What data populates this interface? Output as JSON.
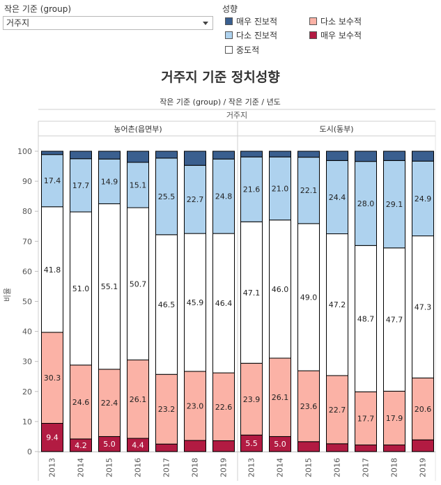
{
  "filter": {
    "label": "작은 기준 (group)",
    "value": "거주지"
  },
  "legend": {
    "title": "성향",
    "items": [
      {
        "key": "very_progressive",
        "label": "매우 진보적",
        "color": "#3a5f8f"
      },
      {
        "key": "somewhat_progressive",
        "label": "다소 진보적",
        "color": "#aed2ee"
      },
      {
        "key": "moderate",
        "label": "중도적",
        "color": "#ffffff"
      },
      {
        "key": "somewhat_conservative",
        "label": "다소 보수적",
        "color": "#fbb2a6"
      },
      {
        "key": "very_conservative",
        "label": "매우 보수적",
        "color": "#b21b42"
      }
    ]
  },
  "chart_data": {
    "type": "bar",
    "stacked": true,
    "title": "거주지 기준 정치성향",
    "subtitle": "작은 기준 (group) / 작은 기준 / 년도",
    "column_header": "거주지",
    "ylabel": "비율",
    "ylim": [
      0,
      100
    ],
    "yticks": [
      0,
      10,
      20,
      30,
      40,
      50,
      60,
      70,
      80,
      90,
      100
    ],
    "grid": false,
    "panels": [
      {
        "name": "농어촌(읍면부)",
        "categories": [
          "2013",
          "2014",
          "2015",
          "2016",
          "2017",
          "2018",
          "2019"
        ],
        "series": [
          {
            "key": "very_conservative",
            "values": [
              9.4,
              4.2,
              5.0,
              4.4,
              2.5,
              3.7,
              3.6
            ],
            "labels": [
              "9.4",
              "4.2",
              "5.0",
              "4.4",
              "",
              "",
              ""
            ]
          },
          {
            "key": "somewhat_conservative",
            "values": [
              30.3,
              24.6,
              22.4,
              26.1,
              23.2,
              23.0,
              22.6
            ],
            "labels": [
              "30.3",
              "24.6",
              "22.4",
              "26.1",
              "23.2",
              "23.0",
              "22.6"
            ]
          },
          {
            "key": "moderate",
            "values": [
              41.8,
              51.0,
              55.1,
              50.7,
              46.5,
              45.9,
              46.4
            ],
            "labels": [
              "41.8",
              "51.0",
              "55.1",
              "50.7",
              "46.5",
              "45.9",
              "46.4"
            ]
          },
          {
            "key": "somewhat_progressive",
            "values": [
              17.4,
              17.7,
              14.9,
              15.1,
              25.5,
              22.7,
              24.8
            ],
            "labels": [
              "17.4",
              "17.7",
              "14.9",
              "15.1",
              "25.5",
              "22.7",
              "24.8"
            ]
          },
          {
            "key": "very_progressive",
            "values": [
              1.1,
              2.5,
              2.6,
              3.7,
              2.3,
              4.7,
              2.6
            ],
            "labels": [
              "",
              "",
              "",
              "",
              "",
              "",
              ""
            ]
          }
        ]
      },
      {
        "name": "도시(동부)",
        "categories": [
          "2013",
          "2014",
          "2015",
          "2016",
          "2017",
          "2018",
          "2019"
        ],
        "series": [
          {
            "key": "very_conservative",
            "values": [
              5.5,
              5.0,
              3.3,
              2.6,
              2.2,
              2.2,
              3.9
            ],
            "labels": [
              "5.5",
              "5.0",
              "",
              "",
              "",
              "",
              ""
            ]
          },
          {
            "key": "somewhat_conservative",
            "values": [
              23.9,
              26.1,
              23.6,
              22.7,
              17.7,
              17.9,
              20.6
            ],
            "labels": [
              "23.9",
              "26.1",
              "23.6",
              "22.7",
              "17.7",
              "17.9",
              "20.6"
            ]
          },
          {
            "key": "moderate",
            "values": [
              47.1,
              46.0,
              49.0,
              47.2,
              48.7,
              47.7,
              47.3
            ],
            "labels": [
              "47.1",
              "46.0",
              "49.0",
              "47.2",
              "48.7",
              "47.7",
              "47.3"
            ]
          },
          {
            "key": "somewhat_progressive",
            "values": [
              21.6,
              21.0,
              22.1,
              24.4,
              28.0,
              29.1,
              24.9
            ],
            "labels": [
              "21.6",
              "21.0",
              "22.1",
              "24.4",
              "28.0",
              "29.1",
              "24.9"
            ]
          },
          {
            "key": "very_progressive",
            "values": [
              1.9,
              1.9,
              2.0,
              3.1,
              3.4,
              3.1,
              3.3
            ],
            "labels": [
              "",
              "",
              "",
              "",
              "",
              "",
              ""
            ]
          }
        ]
      }
    ]
  }
}
